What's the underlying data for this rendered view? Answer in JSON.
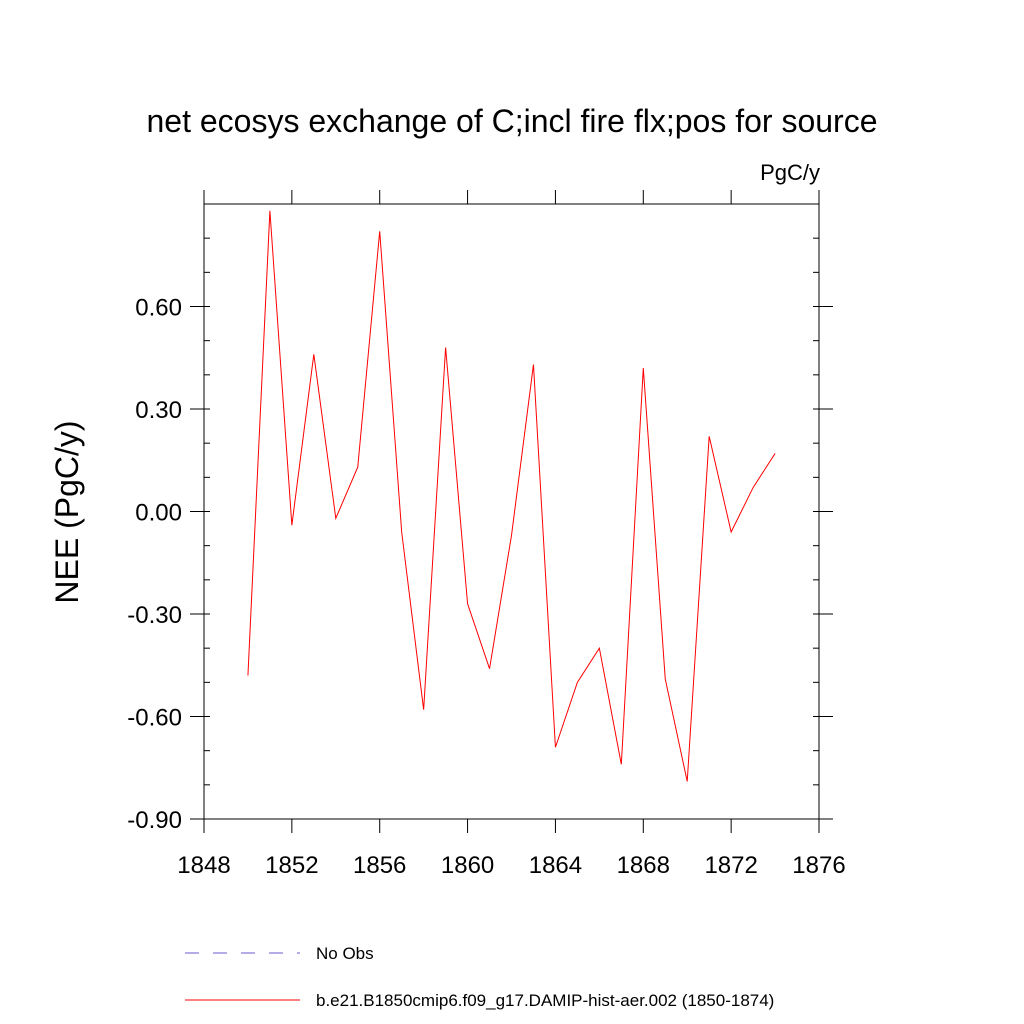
{
  "chart_data": {
    "type": "line",
    "title": "net ecosys exchange of C;incl fire flx;pos for source",
    "units_label": "PgC/y",
    "ylabel": "NEE  (PgC/y)",
    "xlabel": "",
    "xlim": [
      1848,
      1876
    ],
    "ylim": [
      -0.9,
      0.9
    ],
    "x_ticks": [
      1848,
      1852,
      1856,
      1860,
      1864,
      1868,
      1872,
      1876
    ],
    "x_tick_labels": [
      "1848",
      "1852",
      "1856",
      "1860",
      "1864",
      "1868",
      "1872",
      "1876"
    ],
    "y_ticks": [
      -0.9,
      -0.6,
      -0.3,
      0.0,
      0.3,
      0.6
    ],
    "y_tick_labels": [
      "-0.90",
      "-0.60",
      "-0.30",
      "0.00",
      "0.30",
      "0.60"
    ],
    "grid": false,
    "legend_position": "bottom",
    "series": [
      {
        "name": "b.e21.B1850cmip6.f09_g17.DAMIP-hist-aer.002 (1850-1874)",
        "color": "#ff0000",
        "style": "solid",
        "x": [
          1850,
          1851,
          1852,
          1853,
          1854,
          1855,
          1856,
          1857,
          1858,
          1859,
          1860,
          1861,
          1862,
          1863,
          1864,
          1865,
          1866,
          1867,
          1868,
          1869,
          1870,
          1871,
          1872,
          1873,
          1874
        ],
        "values": [
          -0.48,
          0.88,
          -0.04,
          0.46,
          -0.02,
          0.13,
          0.82,
          -0.06,
          -0.58,
          0.48,
          -0.27,
          -0.46,
          -0.07,
          0.43,
          -0.69,
          -0.5,
          -0.4,
          -0.74,
          0.42,
          -0.49,
          -0.79,
          0.22,
          -0.06,
          0.07,
          0.17
        ]
      }
    ],
    "legend": [
      {
        "label": "No Obs",
        "color": "#6a5acd",
        "style": "dashed"
      },
      {
        "label": "b.e21.B1850cmip6.f09_g17.DAMIP-hist-aer.002 (1850-1874)",
        "color": "#ff0000",
        "style": "solid"
      }
    ]
  }
}
